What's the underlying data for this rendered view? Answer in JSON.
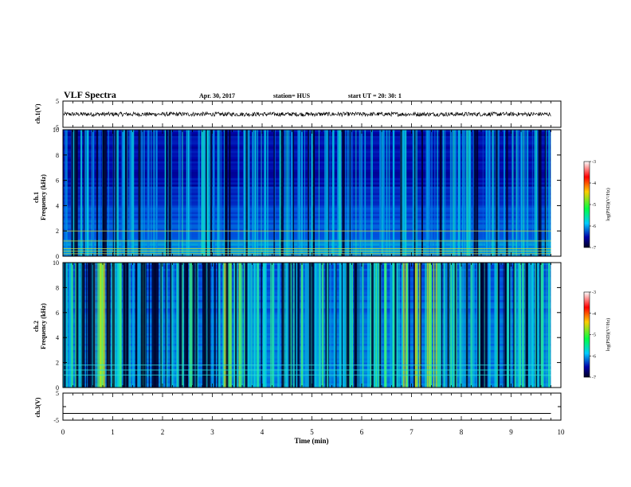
{
  "header": {
    "title": "VLF Spectra",
    "date": "Apr. 30, 2017",
    "station": "station= HUS",
    "start_ut": "start  UT  =   20: 30: 1"
  },
  "colorbar": {
    "label": "log(PSD)(V²/Hz)",
    "ticks": [
      "-3",
      "-4",
      "-5",
      "-6",
      "-7"
    ],
    "colors": [
      "#ffffff",
      "#ff0000",
      "#ffcc00",
      "#00ff44",
      "#00ccff",
      "#0000aa",
      "#000022"
    ]
  },
  "chart_data": [
    {
      "type": "line",
      "ylabel": "ch.1(V)",
      "ylim": [
        -5,
        5
      ],
      "yticks": [
        "5",
        "-5"
      ],
      "x": [
        0,
        9.8
      ],
      "level": 0,
      "note_color": "#000000"
    },
    {
      "type": "heatmap",
      "ylabel_top": "ch.1",
      "ylabel": "Frequency  (kHz)",
      "ylim": [
        0,
        10
      ],
      "yticks": [
        "10",
        "8",
        "6",
        "4",
        "2",
        "0"
      ],
      "xlim": [
        0,
        9.8
      ],
      "values_log_psd_range": [
        -7,
        -3
      ]
    },
    {
      "type": "heatmap",
      "ylabel_top": "ch.2",
      "ylabel": "Frequency  (kHz)",
      "ylim": [
        0,
        10
      ],
      "yticks": [
        "10",
        "8",
        "6",
        "4",
        "2",
        "0"
      ],
      "xlim": [
        0,
        9.8
      ],
      "values_log_psd_range": [
        -7,
        -3
      ]
    },
    {
      "type": "line",
      "ylabel": "ch.3(V)",
      "ylim": [
        -5,
        5
      ],
      "yticks": [
        "5",
        "0",
        "-5"
      ],
      "x": [
        0,
        9.8
      ],
      "level": -2.5
    }
  ],
  "xaxis": {
    "label": "Time  (min)",
    "xlim": [
      0,
      10
    ],
    "ticks": [
      "0",
      "1",
      "2",
      "3",
      "4",
      "5",
      "6",
      "7",
      "8",
      "9",
      "10"
    ]
  }
}
